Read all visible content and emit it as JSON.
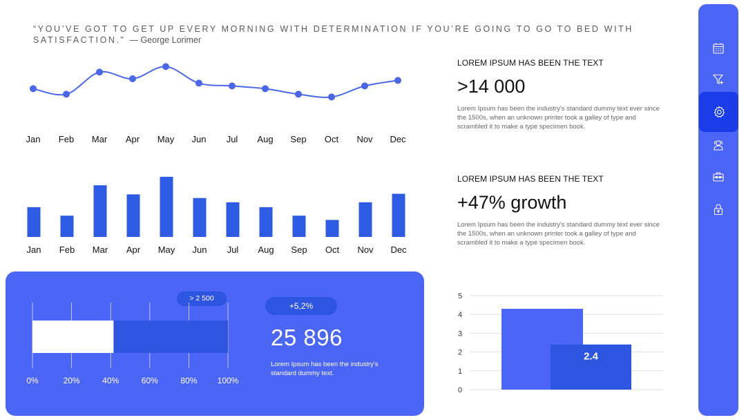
{
  "quote": {
    "text": "“YOU’VE GOT TO GET UP EVERY MORNING WITH DETERMINATION IF YOU’RE GOING TO GO TO BED WITH SATISFACTION.”",
    "author": "— George Lorimer"
  },
  "colors": {
    "accent": "#4b65f6",
    "bar": "#2d5be3",
    "dark_accent": "#1a3de9",
    "line": "#4a67ea"
  },
  "stats": [
    {
      "heading": "LOREM IPSUM HAS BEEN THE TEXT",
      "value": ">14 000",
      "description": "Lorem Ipsum has been the industry's standard dummy text ever since the 1500s, when an unknown printer took a galley of type and scrambled it to make a type specimen book."
    },
    {
      "heading": "LOREM IPSUM HAS BEEN THE TEXT",
      "value": "+47% growth",
      "description": "Lorem Ipsum has been the industry's standard dummy text ever since the 1500s, when an unknown printer took a galley of type and scrambled it to make a type specimen book."
    }
  ],
  "panel": {
    "callout": "> 2 500",
    "badge": "+5,2%",
    "number": "25 896",
    "description": "Lorem Ipsum has been the industry's standard dummy text."
  },
  "sidebar": {
    "items": [
      {
        "icon": "calendar-icon",
        "active": false
      },
      {
        "icon": "filter-icon",
        "active": false
      },
      {
        "icon": "settings-icon",
        "active": true
      },
      {
        "icon": "users-icon",
        "active": false
      },
      {
        "icon": "briefcase-icon",
        "active": false
      },
      {
        "icon": "lock-icon",
        "active": false
      }
    ]
  },
  "chart_data": [
    {
      "type": "line",
      "categories": [
        "Jan",
        "Feb",
        "Mar",
        "Apr",
        "May",
        "Jun",
        "Jul",
        "Aug",
        "Sep",
        "Oct",
        "Nov",
        "Dec"
      ],
      "values": [
        52,
        42,
        82,
        70,
        92,
        62,
        57,
        52,
        42,
        37,
        57,
        67
      ],
      "ylim": [
        0,
        100
      ],
      "grid": false
    },
    {
      "type": "bar",
      "categories": [
        "Jan",
        "Feb",
        "Mar",
        "Apr",
        "May",
        "Jun",
        "Jul",
        "Aug",
        "Sep",
        "Oct",
        "Nov",
        "Dec"
      ],
      "values": [
        49,
        35,
        85,
        70,
        99,
        64,
        57,
        49,
        35,
        28,
        57,
        71
      ],
      "ylim": [
        0,
        100
      ],
      "grid": false
    },
    {
      "type": "bar",
      "orientation": "horizontal",
      "stacked": true,
      "segments": [
        {
          "value": 41.5,
          "color": "#ffffff"
        },
        {
          "value": 58.5,
          "color": "#2d55df"
        }
      ],
      "tick_labels": [
        "0%",
        "20%",
        "40%",
        "60%",
        "80%",
        "100%"
      ],
      "xlim": [
        0,
        100
      ]
    },
    {
      "type": "bar",
      "ylim": [
        0,
        5
      ],
      "yticks": [
        0,
        1,
        2,
        3,
        4,
        5
      ],
      "grid": true,
      "series": [
        {
          "values": [
            4.3
          ],
          "color": "#4b65f6"
        },
        {
          "values": [
            2.4
          ],
          "color": "#2d55df",
          "data_label": "2.4"
        }
      ]
    }
  ]
}
